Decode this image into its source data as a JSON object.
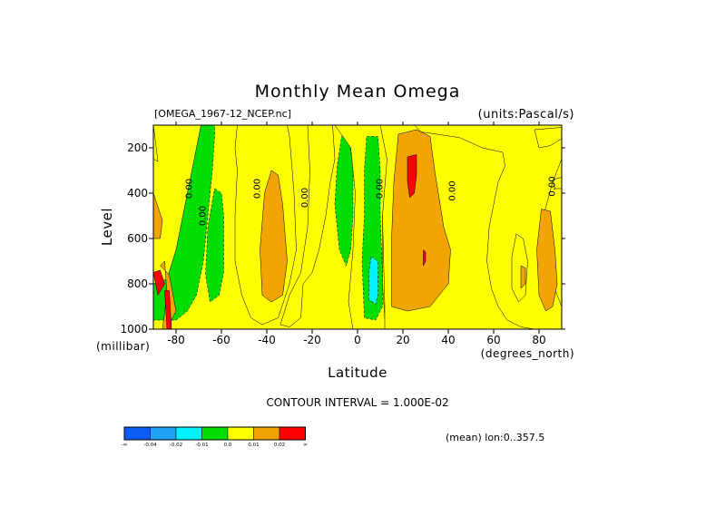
{
  "chart_data": {
    "type": "heatmap",
    "title": "Monthly Mean Omega",
    "subtitle_left": "[OMEGA_1967-12_NCEP.nc]",
    "subtitle_right": "(units:Pascal/s)",
    "xlabel": "Latitude",
    "xunits": "(degrees_north)",
    "ylabel": "Level",
    "yunits": "(millibar)",
    "xlim": [
      -90,
      90
    ],
    "ylim": [
      1000,
      100
    ],
    "x_ticks": [
      -80,
      -60,
      -40,
      -20,
      0,
      20,
      40,
      60,
      80
    ],
    "y_ticks": [
      200,
      400,
      600,
      800,
      1000
    ],
    "contour_interval_text": "CONTOUR INTERVAL = 1.000E-02",
    "averaging_note": "(mean) lon:0..357.5",
    "background_level": "0.0",
    "zero_contour_labels": [
      {
        "text": "0.00",
        "lat": -73,
        "level": 380
      },
      {
        "text": "0.00",
        "lat": -67,
        "level": 500
      },
      {
        "text": "0.00",
        "lat": -43,
        "level": 380
      },
      {
        "text": "0.00",
        "lat": -22,
        "level": 420
      },
      {
        "text": "0.00",
        "lat": 11,
        "level": 380
      },
      {
        "text": "0.00",
        "lat": 43,
        "level": 390
      },
      {
        "text": "0.00",
        "lat": 87,
        "level": 370
      }
    ],
    "legend": {
      "levels": [
        "-0.04",
        "-0.02",
        "-0.01",
        "0.0",
        "0.01",
        "0.02"
      ],
      "colors": [
        "#0b5cf5",
        "#22a2f2",
        "#00f2ff",
        "#00dd00",
        "#ffff00",
        "#f2a500",
        "#ff0000"
      ],
      "end_marks": [
        "-∞",
        "∞"
      ]
    },
    "regions": [
      {
        "level": "-0.01",
        "points": [
          [
            -90,
            100
          ],
          [
            -63,
            100
          ],
          [
            -63,
            150
          ],
          [
            -64,
            300
          ],
          [
            -66,
            500
          ],
          [
            -68,
            700
          ],
          [
            -71,
            850
          ],
          [
            -75,
            920
          ],
          [
            -80,
            960
          ],
          [
            -90,
            960
          ]
        ]
      },
      {
        "level": "0.0",
        "points": [
          [
            -90,
            100
          ],
          [
            -69,
            100
          ],
          [
            -72,
            250
          ],
          [
            -76,
            450
          ],
          [
            -80,
            650
          ],
          [
            -84,
            780
          ],
          [
            -90,
            800
          ]
        ]
      },
      {
        "level": "0.0",
        "points": [
          [
            -90,
            100
          ],
          [
            -90,
            250
          ],
          [
            -88,
            260
          ]
        ]
      },
      {
        "level": "0.01",
        "points": [
          [
            -90,
            400
          ],
          [
            -90,
            600
          ],
          [
            -87,
            600
          ],
          [
            -86,
            520
          ]
        ]
      },
      {
        "level": "0.01",
        "points": [
          [
            -87,
            720
          ],
          [
            -85,
            700
          ],
          [
            -84,
            850
          ],
          [
            -86,
            1000
          ],
          [
            -84,
            1000
          ],
          [
            -80,
            920
          ],
          [
            -83,
            760
          ]
        ]
      },
      {
        "level": "0.02",
        "points": [
          [
            -90,
            750
          ],
          [
            -87,
            740
          ],
          [
            -85,
            800
          ],
          [
            -88,
            850
          ]
        ]
      },
      {
        "level": "0.02",
        "points": [
          [
            -85,
            830
          ],
          [
            -83,
            830
          ],
          [
            -82,
            1000
          ],
          [
            -84,
            1000
          ]
        ]
      },
      {
        "level": "0.0",
        "points": [
          [
            -53,
            100
          ],
          [
            -31,
            100
          ],
          [
            -30,
            150
          ],
          [
            -28,
            400
          ],
          [
            -27,
            650
          ],
          [
            -30,
            800
          ],
          [
            -35,
            950
          ],
          [
            -42,
            980
          ],
          [
            -47,
            950
          ],
          [
            -51,
            850
          ],
          [
            -54,
            700
          ],
          [
            -54,
            500
          ],
          [
            -53,
            300
          ],
          [
            -54,
            200
          ]
        ]
      },
      {
        "level": "0.01",
        "points": [
          [
            -38,
            300
          ],
          [
            -35,
            320
          ],
          [
            -33,
            450
          ],
          [
            -31,
            700
          ],
          [
            -33,
            850
          ],
          [
            -38,
            880
          ],
          [
            -42,
            850
          ],
          [
            -43,
            650
          ],
          [
            -41,
            400
          ]
        ]
      },
      {
        "level": "-0.01",
        "points": [
          [
            -63,
            380
          ],
          [
            -60,
            400
          ],
          [
            -59,
            500
          ],
          [
            -59,
            750
          ],
          [
            -61,
            850
          ],
          [
            -65,
            880
          ],
          [
            -67,
            760
          ],
          [
            -66,
            550
          ]
        ]
      },
      {
        "level": "0.0",
        "points": [
          [
            -22,
            100
          ],
          [
            -11,
            100
          ],
          [
            -10,
            250
          ],
          [
            -12,
            350
          ],
          [
            -14,
            500
          ],
          [
            -17,
            650
          ],
          [
            -20,
            750
          ],
          [
            -24,
            800
          ],
          [
            -25,
            950
          ],
          [
            -30,
            990
          ],
          [
            -34,
            980
          ],
          [
            -30,
            850
          ],
          [
            -25,
            750
          ],
          [
            -22,
            550
          ],
          [
            -21,
            300
          ]
        ]
      },
      {
        "level": "-0.01",
        "points": [
          [
            -7,
            150
          ],
          [
            -4,
            150
          ],
          [
            -2,
            280
          ],
          [
            -2,
            500
          ],
          [
            -3,
            650
          ],
          [
            -5,
            720
          ],
          [
            -8,
            650
          ],
          [
            -10,
            450
          ],
          [
            -9,
            280
          ]
        ]
      },
      {
        "level": "0.0",
        "points": [
          [
            -10,
            100
          ],
          [
            14,
            100
          ],
          [
            15,
            150
          ],
          [
            13,
            300
          ],
          [
            11,
            500
          ],
          [
            11,
            800
          ],
          [
            12,
            950
          ],
          [
            13,
            1000
          ],
          [
            -2,
            1000
          ],
          [
            -4,
            880
          ],
          [
            -2,
            650
          ],
          [
            -1,
            400
          ],
          [
            -3,
            200
          ]
        ]
      },
      {
        "level": "-0.01",
        "points": [
          [
            4,
            150
          ],
          [
            9,
            150
          ],
          [
            10,
            300
          ],
          [
            10,
            500
          ],
          [
            11,
            750
          ],
          [
            11,
            900
          ],
          [
            8,
            960
          ],
          [
            3,
            950
          ],
          [
            2,
            700
          ],
          [
            3,
            500
          ],
          [
            3,
            300
          ]
        ]
      },
      {
        "level": "-0.02",
        "points": [
          [
            6,
            680
          ],
          [
            9,
            700
          ],
          [
            9,
            850
          ],
          [
            8,
            890
          ],
          [
            5,
            870
          ],
          [
            5,
            750
          ]
        ]
      },
      {
        "level": "0.0",
        "points": [
          [
            10,
            100
          ],
          [
            25,
            100
          ],
          [
            28,
            130
          ],
          [
            35,
            140
          ],
          [
            45,
            155
          ],
          [
            55,
            200
          ],
          [
            64,
            220
          ],
          [
            65,
            280
          ],
          [
            62,
            350
          ],
          [
            60,
            450
          ],
          [
            58,
            550
          ],
          [
            57,
            700
          ],
          [
            59,
            820
          ],
          [
            62,
            900
          ],
          [
            66,
            960
          ],
          [
            72,
            990
          ],
          [
            78,
            1000
          ],
          [
            90,
            1000
          ],
          [
            90,
            900
          ],
          [
            86,
            800
          ],
          [
            84,
            650
          ],
          [
            82,
            500
          ],
          [
            86,
            350
          ],
          [
            90,
            250
          ],
          [
            90,
            1000
          ],
          [
            12,
            1000
          ],
          [
            12,
            900
          ],
          [
            11,
            500
          ],
          [
            13,
            250
          ]
        ]
      },
      {
        "level": "0.01",
        "points": [
          [
            18,
            140
          ],
          [
            26,
            120
          ],
          [
            32,
            150
          ],
          [
            34,
            300
          ],
          [
            38,
            550
          ],
          [
            41,
            650
          ],
          [
            40,
            800
          ],
          [
            32,
            900
          ],
          [
            22,
            920
          ],
          [
            15,
            900
          ],
          [
            15,
            600
          ],
          [
            16,
            350
          ]
        ]
      },
      {
        "level": "0.02",
        "points": [
          [
            22,
            240
          ],
          [
            26,
            230
          ],
          [
            26,
            320
          ],
          [
            25,
            400
          ],
          [
            23,
            420
          ],
          [
            22,
            350
          ]
        ]
      },
      {
        "level": "0.02",
        "points": [
          [
            29,
            650
          ],
          [
            30,
            660
          ],
          [
            30,
            700
          ],
          [
            29,
            720
          ]
        ]
      },
      {
        "level": "0.01",
        "points": [
          [
            81,
            470
          ],
          [
            85,
            480
          ],
          [
            87,
            650
          ],
          [
            88,
            800
          ],
          [
            86,
            900
          ],
          [
            83,
            920
          ],
          [
            80,
            850
          ],
          [
            79,
            650
          ]
        ]
      },
      {
        "level": "0.0",
        "points": [
          [
            70,
            580
          ],
          [
            73,
            600
          ],
          [
            75,
            700
          ],
          [
            74,
            850
          ],
          [
            71,
            880
          ],
          [
            68,
            820
          ],
          [
            68,
            680
          ]
        ]
      },
      {
        "level": "0.01",
        "points": [
          [
            72,
            720
          ],
          [
            74,
            730
          ],
          [
            74,
            800
          ],
          [
            72,
            820
          ]
        ]
      },
      {
        "level": "0.0",
        "points": [
          [
            78,
            120
          ],
          [
            90,
            110
          ],
          [
            90,
            160
          ],
          [
            85,
            190
          ],
          [
            80,
            200
          ]
        ]
      },
      {
        "level": "0.0",
        "points": [
          [
            86,
            340
          ],
          [
            90,
            330
          ],
          [
            90,
            380
          ],
          [
            87,
            380
          ]
        ]
      }
    ]
  }
}
